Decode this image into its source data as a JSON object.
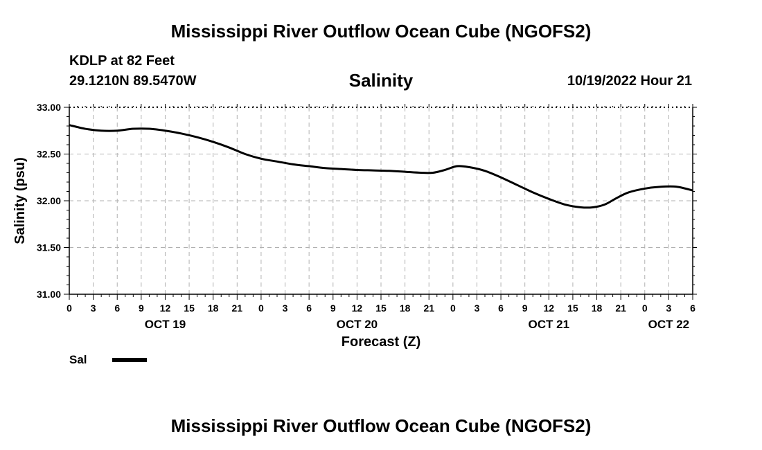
{
  "main_title": "Mississippi River Outflow Ocean Cube (NGOFS2)",
  "station": "KDLP at 82 Feet",
  "coords": "29.1210N  89.5470W",
  "timestamp": "10/19/2022 Hour 21",
  "colors": {
    "line": "#000000",
    "grid": "#b0b0b0",
    "background": "#ffffff"
  },
  "chart_data": {
    "type": "line",
    "title": "Salinity",
    "xlabel": "Forecast (Z)",
    "ylabel": "Salinity (psu)",
    "ylim": [
      31.0,
      33.0
    ],
    "xlim": [
      0,
      78
    ],
    "x_units": "hours since Oct 19 00Z",
    "y_ticks": [
      "31.00",
      "31.50",
      "32.00",
      "32.50",
      "33.00"
    ],
    "y_tick_values": [
      31.0,
      31.5,
      32.0,
      32.5,
      33.0
    ],
    "x_tick_labels": [
      "0",
      "3",
      "6",
      "9",
      "12",
      "15",
      "18",
      "21",
      "0",
      "3",
      "6",
      "9",
      "12",
      "15",
      "18",
      "21",
      "0",
      "3",
      "6",
      "9",
      "12",
      "15",
      "18",
      "21",
      "0",
      "3",
      "6"
    ],
    "date_labels": [
      {
        "label": "OCT 19",
        "hour": 12
      },
      {
        "label": "OCT 20",
        "hour": 36
      },
      {
        "label": "OCT 21",
        "hour": 60
      },
      {
        "label": "OCT 22",
        "hour": 75
      }
    ],
    "legend": {
      "label": "Sal",
      "position": "bottom-left"
    },
    "series": [
      {
        "name": "Sal",
        "x": [
          0,
          2,
          4,
          6,
          8,
          10,
          12,
          14,
          16,
          18,
          20,
          22,
          24,
          26,
          28,
          30,
          32,
          34,
          36,
          38,
          40,
          42,
          44,
          45.5,
          47,
          48.5,
          50,
          52,
          54,
          56,
          58,
          60,
          62,
          64,
          65.5,
          67,
          68.5,
          70,
          72,
          74,
          76,
          78
        ],
        "y": [
          32.81,
          32.77,
          32.75,
          32.75,
          32.77,
          32.77,
          32.75,
          32.72,
          32.68,
          32.63,
          32.57,
          32.5,
          32.45,
          32.42,
          32.39,
          32.37,
          32.35,
          32.34,
          32.33,
          32.325,
          32.32,
          32.31,
          32.3,
          32.3,
          32.33,
          32.37,
          32.36,
          32.32,
          32.25,
          32.17,
          32.09,
          32.02,
          31.96,
          31.93,
          31.93,
          31.96,
          32.03,
          32.09,
          32.13,
          32.15,
          32.15,
          32.11
        ]
      }
    ]
  }
}
